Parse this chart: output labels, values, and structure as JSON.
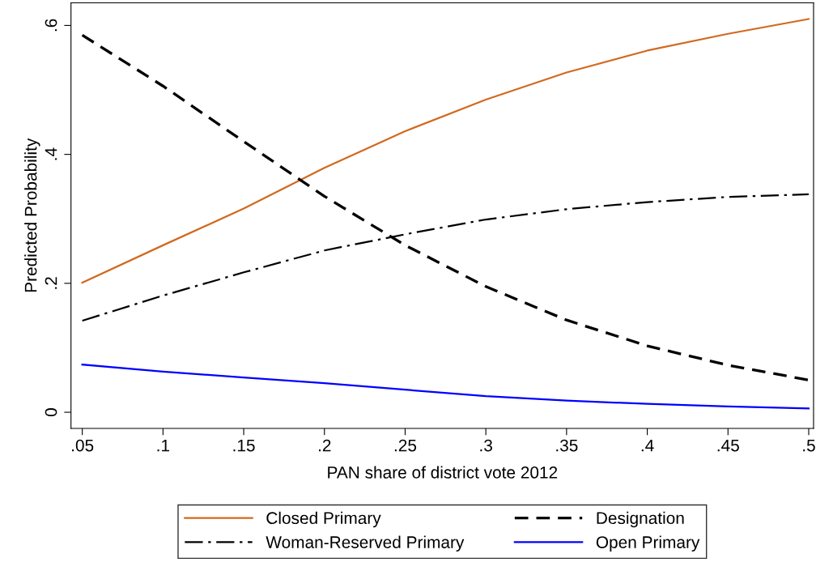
{
  "chart_data": {
    "type": "line",
    "xlabel": "PAN share of district vote 2012",
    "ylabel": "Predicted Probability",
    "x": [
      0.05,
      0.1,
      0.15,
      0.2,
      0.25,
      0.3,
      0.35,
      0.4,
      0.45,
      0.5
    ],
    "series": [
      {
        "name": "Closed Primary",
        "color": "#d2691e",
        "line_style": "solid",
        "values": [
          0.201,
          0.259,
          0.316,
          0.379,
          0.436,
          0.485,
          0.527,
          0.561,
          0.587,
          0.61
        ]
      },
      {
        "name": "Designation",
        "color": "#000000",
        "line_style": "dashed",
        "values": [
          0.585,
          0.506,
          0.42,
          0.335,
          0.259,
          0.195,
          0.143,
          0.103,
          0.073,
          0.05
        ]
      },
      {
        "name": "Woman-Reserved Primary",
        "color": "#000000",
        "line_style": "dashdot",
        "values": [
          0.142,
          0.181,
          0.217,
          0.251,
          0.276,
          0.299,
          0.315,
          0.326,
          0.334,
          0.338
        ]
      },
      {
        "name": "Open Primary",
        "color": "#0000ff",
        "line_style": "solid",
        "values": [
          0.074,
          0.063,
          0.054,
          0.045,
          0.035,
          0.025,
          0.018,
          0.013,
          0.009,
          0.006
        ]
      }
    ],
    "xlim": [
      0.043,
      0.503
    ],
    "ylim": [
      -0.025,
      0.635
    ],
    "xticks": [
      {
        "value": 0.05,
        "label": ".05"
      },
      {
        "value": 0.1,
        "label": ".1"
      },
      {
        "value": 0.15,
        "label": ".15"
      },
      {
        "value": 0.2,
        "label": ".2"
      },
      {
        "value": 0.25,
        "label": ".25"
      },
      {
        "value": 0.3,
        "label": ".3"
      },
      {
        "value": 0.35,
        "label": ".35"
      },
      {
        "value": 0.4,
        "label": ".4"
      },
      {
        "value": 0.45,
        "label": ".45"
      },
      {
        "value": 0.5,
        "label": ".5"
      }
    ],
    "yticks": [
      0,
      {
        "value": 0.2,
        "label": ".2"
      },
      {
        "value": 0.4,
        "label": ".4"
      },
      {
        "value": 0.6,
        "label": ".6"
      }
    ],
    "grid": false,
    "legend": "bottom",
    "marker": "none"
  }
}
